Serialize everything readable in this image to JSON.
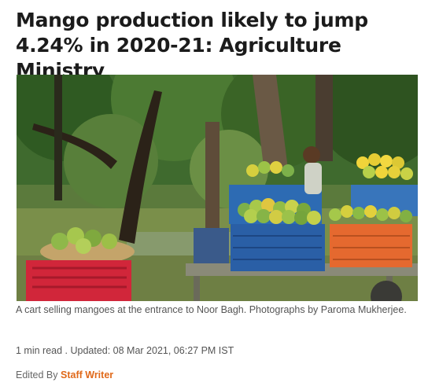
{
  "article": {
    "headline": "Mango production likely to jump 4.24% in 2020-21: Agriculture Ministry",
    "image_alt": "A cart selling mangoes at the entrance to Noor Bagh",
    "caption": "A cart selling mangoes at the entrance to Noor Bagh. Photographs by Paroma Mukherjee.",
    "meta": "1 min read . Updated: 08 Mar 2021, 06:27 PM IST",
    "edited_by_label": "Edited By",
    "editor_name": "Staff Writer"
  },
  "colors": {
    "link_orange": "#e0691a",
    "text_dark": "#1b1b1b",
    "text_muted": "#555555"
  }
}
